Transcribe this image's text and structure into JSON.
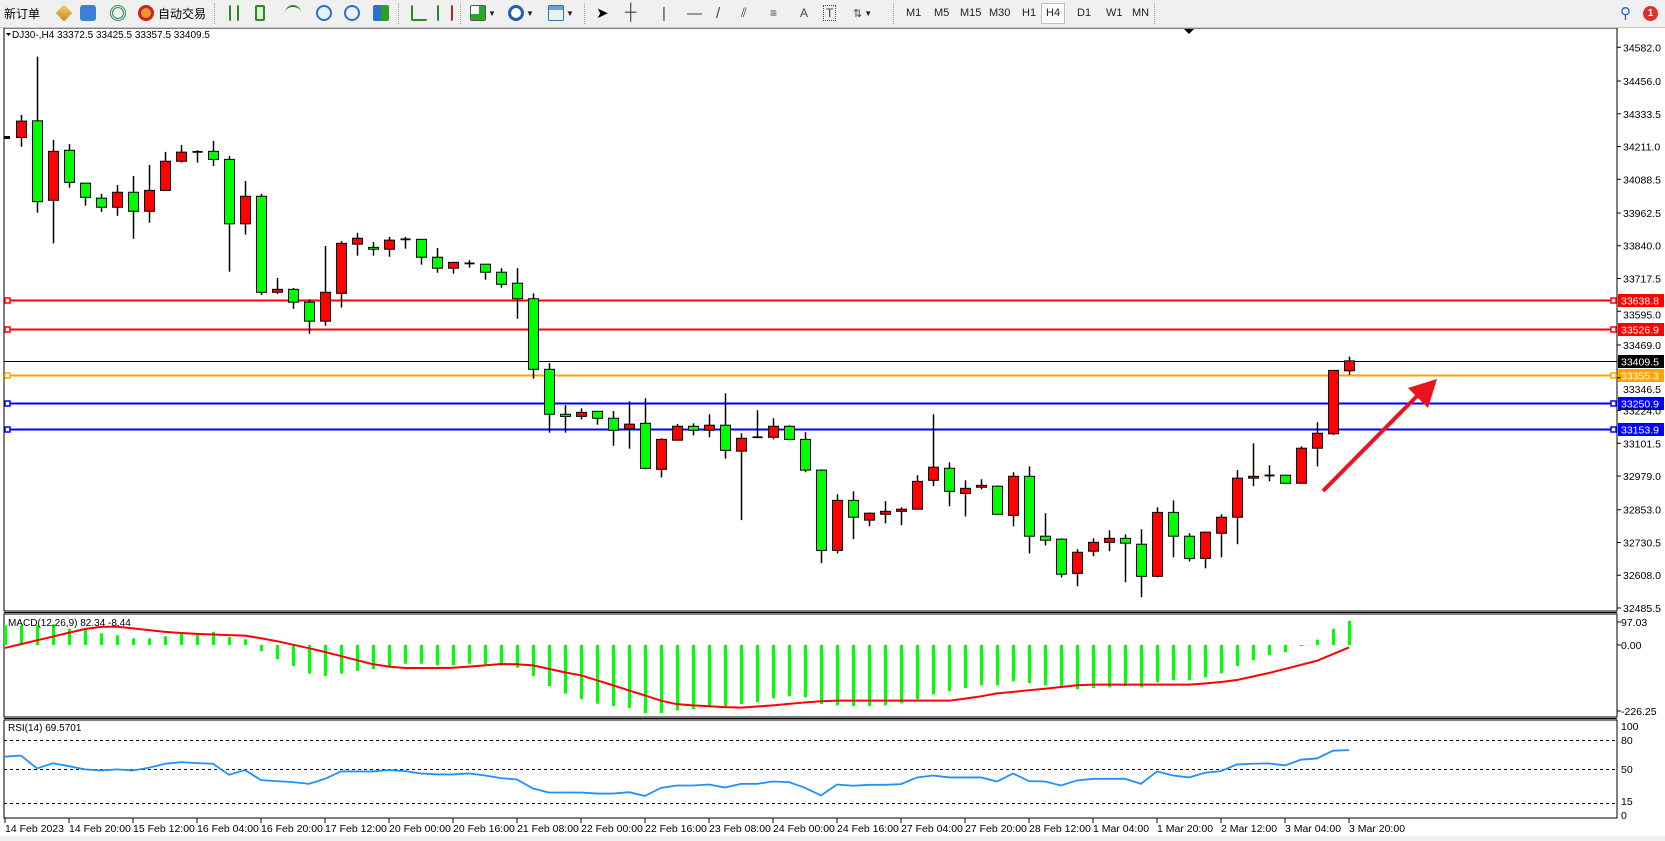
{
  "toolbar": {
    "new_order_label": "新订单",
    "auto_trade_label": "自动交易",
    "timeframes": [
      "M1",
      "M5",
      "M15",
      "M30",
      "H1",
      "H4",
      "D1",
      "W1",
      "MN"
    ],
    "active_timeframe": "H4",
    "notification_count": "1"
  },
  "chart": {
    "symbol_info": "DJ30-,H4  33372.5 33425.5 33357.5 33409.5",
    "colors": {
      "bull": "#ff0000",
      "bear": "#00ff00",
      "outline": "#000000",
      "macd_signal": "#ff0000",
      "macd_hist": "#00ff00",
      "rsi": "#1e90ff",
      "arrow": "#e8141e"
    },
    "price_ticks": [
      "34582.0",
      "34456.0",
      "34333.5",
      "34211.0",
      "34088.5",
      "33962.5",
      "33840.0",
      "33717.5",
      "33595.0",
      "33469.0",
      "33346.5",
      "33224.0",
      "33101.5",
      "32979.0",
      "32853.0",
      "32730.5",
      "32608.0",
      "32485.5"
    ],
    "horizontal_lines": [
      {
        "price": 33638.8,
        "label": "33638.8",
        "color": "#ff0000"
      },
      {
        "price": 33526.9,
        "label": "33526.9",
        "color": "#ff0000"
      },
      {
        "price": 33355.3,
        "label": "33355.3",
        "color": "#ffa500"
      },
      {
        "price": 33250.9,
        "label": "33250.9",
        "color": "#0000ff"
      },
      {
        "price": 33153.9,
        "label": "33153.9",
        "color": "#0000ff"
      }
    ],
    "bid_line": {
      "price": 33409.5,
      "label": "33409.5",
      "color": "#000000"
    },
    "time_labels": [
      "14 Feb 2023",
      "14 Feb 20:00",
      "15 Feb 12:00",
      "16 Feb 04:00",
      "16 Feb 20:00",
      "17 Feb 12:00",
      "20 Feb 00:00",
      "20 Feb 16:00",
      "21 Feb 08:00",
      "22 Feb 00:00",
      "22 Feb 16:00",
      "23 Feb 08:00",
      "24 Feb 00:00",
      "24 Feb 16:00",
      "27 Feb 04:00",
      "27 Feb 20:00",
      "28 Feb 12:00",
      "1 Mar 04:00",
      "1 Mar 20:00",
      "2 Mar 12:00",
      "3 Mar 04:00",
      "3 Mar 20:00"
    ],
    "candles_ohlc": [
      [
        34245,
        34329,
        34210,
        34306
      ],
      [
        34307,
        34547,
        33964,
        34005
      ],
      [
        34010,
        34236,
        33849,
        34193
      ],
      [
        34197,
        34220,
        34057,
        34077
      ],
      [
        34074,
        34074,
        33990,
        34021
      ],
      [
        34018,
        34034,
        33967,
        33984
      ],
      [
        33984,
        34067,
        33952,
        34040
      ],
      [
        34040,
        34101,
        33866,
        33969
      ],
      [
        33969,
        34142,
        33926,
        34047
      ],
      [
        34047,
        34191,
        34047,
        34156
      ],
      [
        34156,
        34217,
        34151,
        34190
      ],
      [
        34189,
        34197,
        34151,
        34191
      ],
      [
        34193,
        34232,
        34138,
        34163
      ],
      [
        34163,
        34176,
        33743,
        33922
      ],
      [
        33922,
        34082,
        33882,
        34025
      ],
      [
        34025,
        34034,
        33656,
        33666
      ],
      [
        33666,
        33720,
        33660,
        33677
      ],
      [
        33677,
        33682,
        33604,
        33629
      ],
      [
        33629,
        33640,
        33511,
        33558
      ],
      [
        33558,
        33839,
        33541,
        33666
      ],
      [
        33662,
        33857,
        33609,
        33849
      ],
      [
        33846,
        33888,
        33803,
        33868
      ],
      [
        33834,
        33854,
        33803,
        33827
      ],
      [
        33827,
        33873,
        33799,
        33861
      ],
      [
        33862,
        33873,
        33829,
        33864
      ],
      [
        33864,
        33864,
        33769,
        33797
      ],
      [
        33797,
        33832,
        33739,
        33756
      ],
      [
        33756,
        33778,
        33736,
        33778
      ],
      [
        33772,
        33786,
        33758,
        33774
      ],
      [
        33771,
        33771,
        33713,
        33741
      ],
      [
        33741,
        33756,
        33683,
        33696
      ],
      [
        33700,
        33756,
        33567,
        33642
      ],
      [
        33642,
        33662,
        33343,
        33378
      ],
      [
        33378,
        33401,
        33141,
        33210
      ],
      [
        33210,
        33244,
        33141,
        33202
      ],
      [
        33202,
        33232,
        33190,
        33217
      ],
      [
        33221,
        33221,
        33171,
        33195
      ],
      [
        33195,
        33222,
        33092,
        33150
      ],
      [
        33156,
        33258,
        33081,
        33173
      ],
      [
        33176,
        33270,
        33004,
        33008
      ],
      [
        33004,
        33120,
        32974,
        33116
      ],
      [
        33113,
        33174,
        33113,
        33165
      ],
      [
        33165,
        33176,
        33131,
        33150
      ],
      [
        33150,
        33210,
        33124,
        33169
      ],
      [
        33169,
        33288,
        33044,
        33075
      ],
      [
        33072,
        33139,
        32814,
        33120
      ],
      [
        33123,
        33225,
        33122,
        33124
      ],
      [
        33124,
        33195,
        33116,
        33165
      ],
      [
        33165,
        33169,
        33113,
        33116
      ],
      [
        33116,
        33143,
        32993,
        33001
      ],
      [
        33001,
        33004,
        32653,
        32701
      ],
      [
        32701,
        32911,
        32690,
        32888
      ],
      [
        32888,
        32922,
        32743,
        32825
      ],
      [
        32814,
        32843,
        32791,
        32840
      ],
      [
        32836,
        32885,
        32802,
        32847
      ],
      [
        32847,
        32862,
        32795,
        32855
      ],
      [
        32855,
        32982,
        32855,
        32959
      ],
      [
        32963,
        33210,
        32941,
        33012
      ],
      [
        33008,
        33030,
        32866,
        32922
      ],
      [
        32914,
        32963,
        32828,
        32933
      ],
      [
        32937,
        32967,
        32929,
        32944
      ],
      [
        32941,
        32944,
        32836,
        32836
      ],
      [
        32832,
        32993,
        32791,
        32978
      ],
      [
        32978,
        33015,
        32690,
        32754
      ],
      [
        32754,
        32840,
        32720,
        32739
      ],
      [
        32743,
        32746,
        32600,
        32612
      ],
      [
        32615,
        32705,
        32567,
        32694
      ],
      [
        32698,
        32746,
        32679,
        32731
      ],
      [
        32731,
        32776,
        32698,
        32746
      ],
      [
        32746,
        32761,
        32582,
        32728
      ],
      [
        32724,
        32780,
        32526,
        32604
      ],
      [
        32604,
        32862,
        32600,
        32843
      ],
      [
        32843,
        32888,
        32675,
        32754
      ],
      [
        32754,
        32765,
        32660,
        32671
      ],
      [
        32671,
        32772,
        32634,
        32769
      ],
      [
        32765,
        32836,
        32675,
        32825
      ],
      [
        32825,
        33001,
        32724,
        32971
      ],
      [
        32971,
        33101,
        32941,
        32978
      ],
      [
        32979,
        33019,
        32959,
        32981
      ],
      [
        32982,
        32982,
        32952,
        32952
      ],
      [
        32952,
        33090,
        32952,
        33083
      ],
      [
        33083,
        33180,
        33015,
        33139
      ],
      [
        33137,
        33374,
        33132,
        33374
      ],
      [
        33372.5,
        33425.5,
        33357.5,
        33409.5
      ]
    ]
  },
  "macd": {
    "label": "MACD(12,26,9) 82.34 -8.44",
    "ticks": [
      "97.03",
      "0.00",
      "-226.25"
    ],
    "histogram": [
      67.4,
      67.4,
      67.4,
      70.9,
      56.0,
      52.6,
      40.0,
      33.1,
      22.9,
      22.9,
      29.7,
      37.7,
      40.0,
      45.7,
      27.4,
      19.4,
      -20.6,
      -48.0,
      -72.0,
      -98.3,
      -106.3,
      -98.3,
      -89.2,
      -82.3,
      -75.4,
      -64.0,
      -64.0,
      -69.7,
      -69.7,
      -64.0,
      -69.7,
      -69.7,
      -77.7,
      -106.3,
      -140.6,
      -166.9,
      -186.3,
      -201.2,
      -209.2,
      -216.0,
      -233.2,
      -233.2,
      -224.0,
      -219.5,
      -210.3,
      -210.3,
      -202.3,
      -195.4,
      -182.9,
      -176.0,
      -179.4,
      -202.3,
      -206.9,
      -209.2,
      -209.2,
      -206.9,
      -200.0,
      -186.3,
      -169.2,
      -158.9,
      -147.4,
      -138.3,
      -138.3,
      -124.6,
      -130.3,
      -138.3,
      -146.3,
      -152.0,
      -147.4,
      -145.2,
      -140.6,
      -145.2,
      -128.0,
      -121.2,
      -121.2,
      -110.9,
      -97.2,
      -72.0,
      -52.6,
      -35.4,
      -25.1,
      -3.4,
      18.3,
      56.0,
      82.34
    ],
    "signal": [
      -10,
      3,
      16,
      29,
      42,
      55,
      62,
      63,
      57,
      51,
      45,
      41,
      38,
      36,
      34,
      32,
      23,
      13,
      1,
      -11,
      -24,
      -38,
      -52,
      -66,
      -74,
      -79,
      -79,
      -79,
      -78,
      -74,
      -70,
      -65,
      -66,
      -70,
      -82,
      -94,
      -104,
      -121,
      -138,
      -156,
      -173,
      -191,
      -203,
      -207,
      -210,
      -213,
      -215,
      -211,
      -207,
      -202,
      -197,
      -193,
      -191,
      -191,
      -191,
      -191,
      -191,
      -191,
      -191,
      -191,
      -184,
      -176,
      -166,
      -161,
      -155,
      -150,
      -144,
      -138,
      -136,
      -136,
      -136,
      -136,
      -136,
      -136,
      -136,
      -132,
      -127,
      -120,
      -108,
      -96,
      -82,
      -68,
      -54,
      -31,
      -8.44
    ]
  },
  "rsi": {
    "label": "RSI(14) 69.5701",
    "ticks": [
      "100",
      "80",
      "50",
      "15",
      "0"
    ],
    "levels": [
      80,
      50,
      15
    ],
    "values": [
      62.8,
      64,
      50.7,
      56,
      53,
      49.7,
      48.6,
      49.7,
      48.6,
      51.4,
      55.5,
      57.2,
      56.2,
      55.5,
      44.1,
      49,
      38.6,
      37.6,
      36.6,
      34.8,
      40,
      47.6,
      47.6,
      47.6,
      49,
      47.9,
      45.5,
      44.5,
      44.5,
      45.5,
      43.4,
      40.7,
      39.3,
      30,
      25.9,
      25.9,
      25.9,
      24.8,
      24.8,
      26.2,
      22.4,
      30.7,
      33.1,
      33.1,
      34.1,
      31,
      34.8,
      34.8,
      37.2,
      36.6,
      30.7,
      22.8,
      34.1,
      32.8,
      33.8,
      33.8,
      34.5,
      41.4,
      43.4,
      41.4,
      41.4,
      41.4,
      37.2,
      45.5,
      37.6,
      37.2,
      33.1,
      38.3,
      40,
      40,
      40,
      34.8,
      47.6,
      43.4,
      41.4,
      46.2,
      47.9,
      54.8,
      55.5,
      55.9,
      53.8,
      59.7,
      61,
      69,
      69.5701
    ]
  }
}
